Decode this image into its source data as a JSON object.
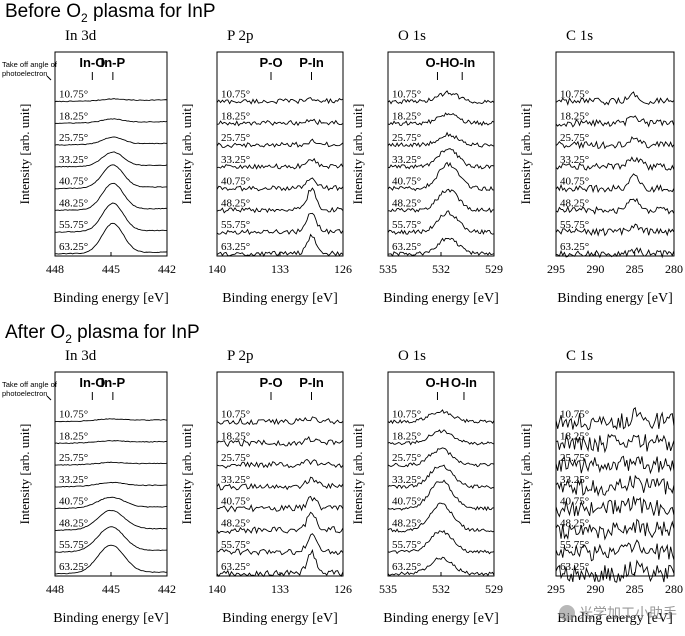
{
  "sections": [
    {
      "title_prefix": "Before O",
      "title_sub": "2",
      "title_suffix": " plasma for InP"
    },
    {
      "title_prefix": "After O",
      "title_sub": "2",
      "title_suffix": " plasma for InP"
    }
  ],
  "angle_header": [
    "Take off angle of",
    "photoelectron"
  ],
  "angles": [
    "10.75°",
    "18.25°",
    "25.75°",
    "33.25°",
    "40.75°",
    "48.25°",
    "55.75°",
    "63.25°"
  ],
  "ylabel": "Intensity [arb. unit]",
  "xlabel": "Binding energy [eV]",
  "watermark_text": "光学加工小助手",
  "chart_data": [
    {
      "type": "line",
      "panel": "In 3d",
      "section": "before",
      "xlim": [
        448,
        442
      ],
      "xticks": [
        "448",
        "445",
        "442"
      ],
      "markers": [
        {
          "label": "In-O",
          "x": 446
        },
        {
          "label": "In-P",
          "x": 444.9
        }
      ],
      "peak": {
        "center": 444.9,
        "width": 0.8,
        "heights": [
          0.05,
          0.1,
          0.2,
          0.4,
          0.65,
          0.75,
          0.8,
          0.85
        ]
      },
      "noise": 0.01,
      "slope": 0.05
    },
    {
      "type": "line",
      "panel": "P 2p",
      "section": "before",
      "xlim": [
        140,
        126
      ],
      "xticks": [
        "140",
        "133",
        "126"
      ],
      "markers": [
        {
          "label": "P-O",
          "x": 134
        },
        {
          "label": "P-In",
          "x": 129.5
        }
      ],
      "peak": {
        "center": 129.5,
        "width": 0.7,
        "heights": [
          0.05,
          0.05,
          0.1,
          0.2,
          0.3,
          0.6,
          0.6,
          0.5
        ]
      },
      "noise": 0.07,
      "slope": 0.02
    },
    {
      "type": "line",
      "panel": "O 1s",
      "section": "before",
      "xlim": [
        535,
        529
      ],
      "xticks": [
        "535",
        "532",
        "529"
      ],
      "markers": [
        {
          "label": "O-H",
          "x": 532.2
        },
        {
          "label": "O-In",
          "x": 530.8
        }
      ],
      "peak": {
        "center": 531.6,
        "width": 0.8,
        "heights": [
          0.25,
          0.25,
          0.3,
          0.5,
          0.7,
          0.6,
          0.55,
          0.45
        ]
      },
      "noise": 0.06,
      "slope": 0.0
    },
    {
      "type": "line",
      "panel": "C 1s",
      "section": "before",
      "xlim": [
        295,
        280
      ],
      "xticks": [
        "295",
        "290",
        "285",
        "280"
      ],
      "markers": [],
      "peak": {
        "center": 285,
        "width": 1.0,
        "heights": [
          0.2,
          0.15,
          0.2,
          0.25,
          0.35,
          0.3,
          0.15,
          0.1
        ]
      },
      "noise": 0.1,
      "slope": 0.0
    },
    {
      "type": "line",
      "panel": "In 3d",
      "section": "after",
      "xlim": [
        448,
        442
      ],
      "xticks": [
        "448",
        "445",
        "442"
      ],
      "markers": [
        {
          "label": "In-O",
          "x": 446
        },
        {
          "label": "In-P",
          "x": 444.9
        }
      ],
      "peak": {
        "center": 445.0,
        "width": 1.0,
        "heights": [
          0.05,
          0.05,
          0.05,
          0.1,
          0.3,
          0.55,
          0.7,
          0.8
        ]
      },
      "noise": 0.01,
      "slope": 0.05
    },
    {
      "type": "line",
      "panel": "P 2p",
      "section": "after",
      "xlim": [
        140,
        126
      ],
      "xticks": [
        "140",
        "133",
        "126"
      ],
      "markers": [
        {
          "label": "P-O",
          "x": 134
        },
        {
          "label": "P-In",
          "x": 129.5
        }
      ],
      "peak": {
        "center": 129.5,
        "width": 0.7,
        "heights": [
          0.05,
          0.1,
          0.1,
          0.2,
          0.3,
          0.5,
          0.5,
          0.6
        ]
      },
      "noise": 0.09,
      "slope": 0.02
    },
    {
      "type": "line",
      "panel": "O 1s",
      "section": "after",
      "xlim": [
        535,
        529
      ],
      "xticks": [
        "535",
        "532",
        "529"
      ],
      "markers": [
        {
          "label": "O-H",
          "x": 532.2
        },
        {
          "label": "O-In",
          "x": 530.7
        }
      ],
      "peak": {
        "center": 532.0,
        "width": 0.9,
        "heights": [
          0.3,
          0.35,
          0.45,
          0.6,
          0.8,
          0.75,
          0.6,
          0.45
        ]
      },
      "noise": 0.05,
      "slope": 0.0
    },
    {
      "type": "line",
      "panel": "C 1s",
      "section": "after",
      "xlim": [
        295,
        280
      ],
      "xticks": [
        "295",
        "290",
        "285",
        "280"
      ],
      "markers": [],
      "peak": {
        "center": 285,
        "width": 1.0,
        "heights": [
          0.15,
          0.15,
          0.15,
          0.15,
          0.15,
          0.15,
          0.15,
          0.15
        ]
      },
      "noise": 0.25,
      "slope": 0.0
    }
  ]
}
